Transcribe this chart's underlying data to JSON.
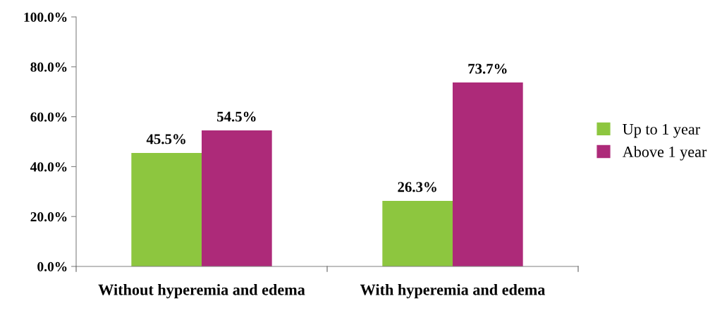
{
  "chart_data": {
    "type": "bar",
    "categories": [
      "Without hyperemia and edema",
      "With hyperemia and edema"
    ],
    "series": [
      {
        "name": "Up to 1 year",
        "color": "#8dc63f",
        "values": [
          45.5,
          26.3
        ],
        "value_labels": [
          "45.5%",
          "26.3%"
        ]
      },
      {
        "name": "Above 1 year",
        "color": "#ad2a79",
        "values": [
          54.5,
          73.7
        ],
        "value_labels": [
          "54.5%",
          "73.7%"
        ]
      }
    ],
    "ylim": [
      0,
      100
    ],
    "yticks": [
      {
        "value": 0,
        "label": "0.0%"
      },
      {
        "value": 20,
        "label": "20.0%"
      },
      {
        "value": 40,
        "label": "40.0%"
      },
      {
        "value": 60,
        "label": "60.0%"
      },
      {
        "value": 80,
        "label": "80.0%"
      },
      {
        "value": 100,
        "label": "100.0%"
      }
    ],
    "grid": false,
    "legend": "right"
  }
}
